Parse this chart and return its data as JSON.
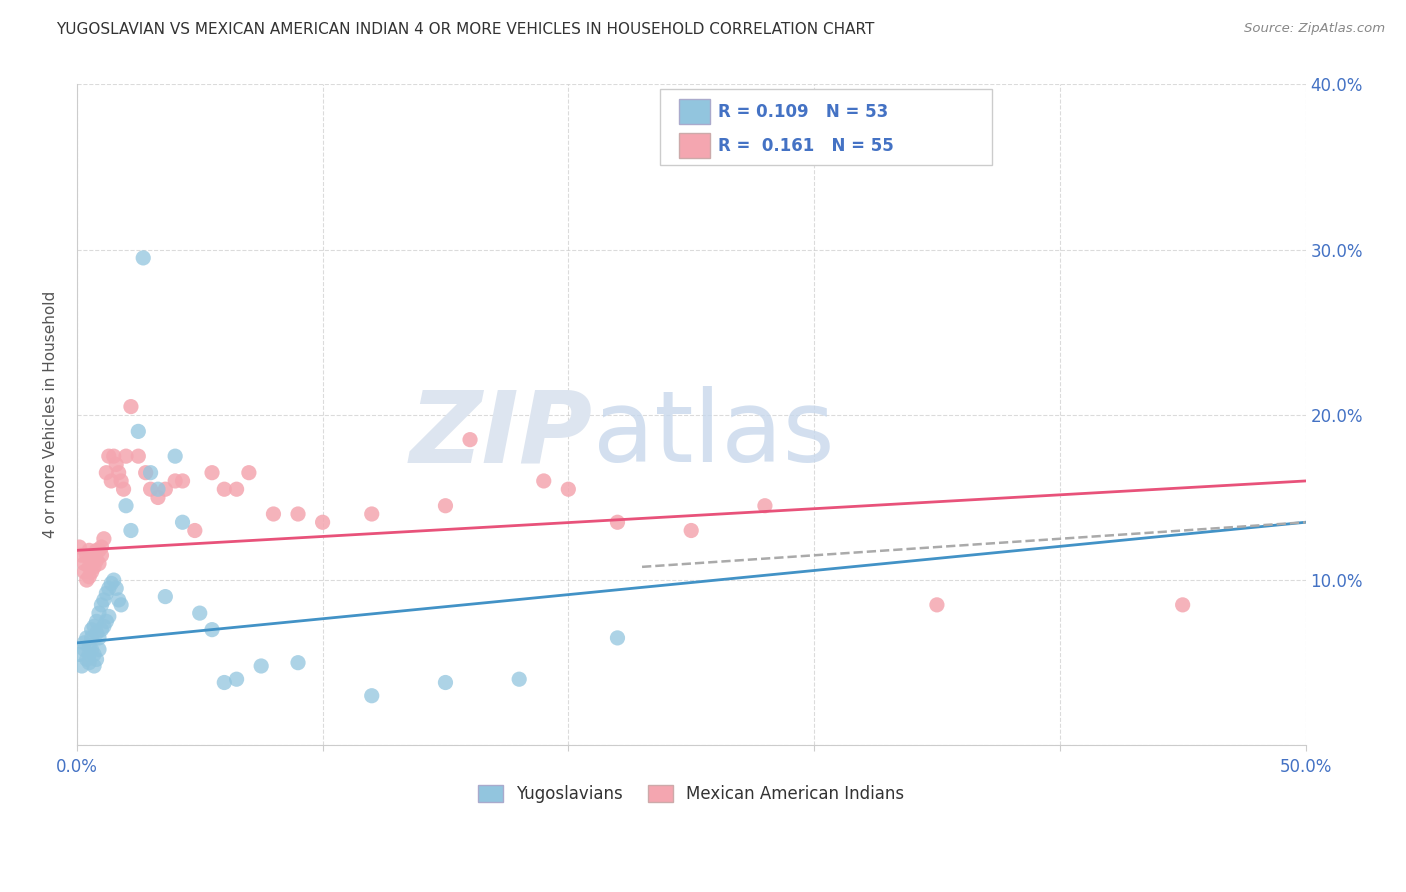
{
  "title": "YUGOSLAVIAN VS MEXICAN AMERICAN INDIAN 4 OR MORE VEHICLES IN HOUSEHOLD CORRELATION CHART",
  "source": "Source: ZipAtlas.com",
  "ylabel": "4 or more Vehicles in Household",
  "xlim": [
    0.0,
    0.5
  ],
  "ylim": [
    0.0,
    0.4
  ],
  "legend_labels": [
    "Yugoslavians",
    "Mexican American Indians"
  ],
  "blue_R": "0.109",
  "blue_N": "53",
  "pink_R": "0.161",
  "pink_N": "55",
  "blue_color": "#92c5de",
  "pink_color": "#f4a6b0",
  "blue_line_color": "#4292c6",
  "pink_line_color": "#e8527a",
  "blue_scatter_x": [
    0.001,
    0.002,
    0.003,
    0.003,
    0.004,
    0.004,
    0.005,
    0.005,
    0.005,
    0.006,
    0.006,
    0.006,
    0.007,
    0.007,
    0.007,
    0.008,
    0.008,
    0.008,
    0.009,
    0.009,
    0.009,
    0.01,
    0.01,
    0.011,
    0.011,
    0.012,
    0.012,
    0.013,
    0.013,
    0.014,
    0.015,
    0.016,
    0.017,
    0.018,
    0.02,
    0.022,
    0.025,
    0.027,
    0.03,
    0.033,
    0.036,
    0.04,
    0.043,
    0.05,
    0.055,
    0.06,
    0.065,
    0.075,
    0.09,
    0.12,
    0.15,
    0.18,
    0.22
  ],
  "blue_scatter_y": [
    0.055,
    0.048,
    0.058,
    0.062,
    0.065,
    0.052,
    0.06,
    0.055,
    0.05,
    0.07,
    0.065,
    0.058,
    0.072,
    0.055,
    0.048,
    0.075,
    0.068,
    0.052,
    0.08,
    0.065,
    0.058,
    0.085,
    0.07,
    0.088,
    0.072,
    0.092,
    0.075,
    0.095,
    0.078,
    0.098,
    0.1,
    0.095,
    0.088,
    0.085,
    0.145,
    0.13,
    0.19,
    0.295,
    0.165,
    0.155,
    0.09,
    0.175,
    0.135,
    0.08,
    0.07,
    0.038,
    0.04,
    0.048,
    0.05,
    0.03,
    0.038,
    0.04,
    0.065
  ],
  "pink_scatter_x": [
    0.001,
    0.002,
    0.003,
    0.003,
    0.004,
    0.004,
    0.005,
    0.005,
    0.005,
    0.006,
    0.006,
    0.007,
    0.007,
    0.008,
    0.008,
    0.009,
    0.009,
    0.01,
    0.01,
    0.011,
    0.012,
    0.013,
    0.014,
    0.015,
    0.016,
    0.017,
    0.018,
    0.019,
    0.02,
    0.022,
    0.025,
    0.028,
    0.03,
    0.033,
    0.036,
    0.04,
    0.043,
    0.048,
    0.055,
    0.06,
    0.065,
    0.07,
    0.08,
    0.09,
    0.1,
    0.12,
    0.15,
    0.16,
    0.19,
    0.2,
    0.22,
    0.25,
    0.28,
    0.35,
    0.45
  ],
  "pink_scatter_y": [
    0.12,
    0.115,
    0.11,
    0.105,
    0.1,
    0.115,
    0.108,
    0.102,
    0.118,
    0.112,
    0.105,
    0.115,
    0.108,
    0.118,
    0.112,
    0.118,
    0.11,
    0.12,
    0.115,
    0.125,
    0.165,
    0.175,
    0.16,
    0.175,
    0.17,
    0.165,
    0.16,
    0.155,
    0.175,
    0.205,
    0.175,
    0.165,
    0.155,
    0.15,
    0.155,
    0.16,
    0.16,
    0.13,
    0.165,
    0.155,
    0.155,
    0.165,
    0.14,
    0.14,
    0.135,
    0.14,
    0.145,
    0.185,
    0.16,
    0.155,
    0.135,
    0.13,
    0.145,
    0.085,
    0.085
  ],
  "blue_line_x0": 0.0,
  "blue_line_y0": 0.062,
  "blue_line_x1": 0.5,
  "blue_line_y1": 0.135,
  "pink_line_x0": 0.0,
  "pink_line_y0": 0.118,
  "pink_line_x1": 0.5,
  "pink_line_y1": 0.16,
  "dashed_line_x0": 0.23,
  "dashed_line_y0": 0.108,
  "dashed_line_x1": 0.5,
  "dashed_line_y1": 0.135
}
